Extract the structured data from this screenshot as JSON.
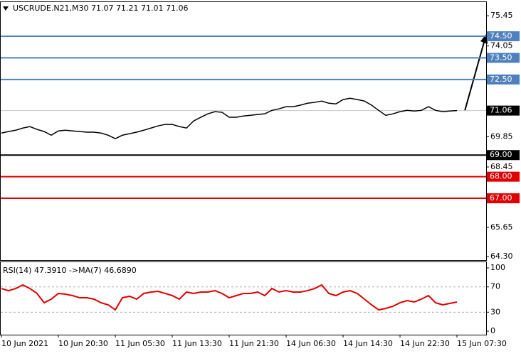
{
  "chart_data": [
    {
      "type": "line",
      "title": "USCRUDE.N21,M30  71.07 71.21 71.01 71.06",
      "categories": [
        "10 Jun 2021",
        null,
        null,
        null,
        null,
        null,
        null,
        null,
        "10 Jun 20:30",
        null,
        null,
        null,
        null,
        null,
        null,
        null,
        "11 Jun 05:30",
        null,
        null,
        null,
        null,
        null,
        null,
        null,
        "11 Jun 13:30",
        null,
        null,
        null,
        null,
        null,
        null,
        null,
        "11 Jun 21:30",
        null,
        null,
        null,
        null,
        null,
        null,
        null,
        "14 Jun 06:30",
        null,
        null,
        null,
        null,
        null,
        null,
        null,
        "14 Jun 14:30",
        null,
        null,
        null,
        null,
        null,
        null,
        null,
        "14 Jun 22:30",
        null,
        null,
        null,
        null,
        null,
        null,
        null,
        "15 Jun 07:30"
      ],
      "series": [
        {
          "color": "#000000",
          "values": [
            70.02,
            70.09,
            70.15,
            70.25,
            70.32,
            70.19,
            70.09,
            69.92,
            70.12,
            70.15,
            70.12,
            70.09,
            70.06,
            70.06,
            70.02,
            69.92,
            69.76,
            69.92,
            69.99,
            70.06,
            70.15,
            70.25,
            70.35,
            70.42,
            70.42,
            70.32,
            70.25,
            70.58,
            70.75,
            70.91,
            71.01,
            70.98,
            70.75,
            70.75,
            70.81,
            70.84,
            70.88,
            70.91,
            71.07,
            71.14,
            71.24,
            71.24,
            71.31,
            71.4,
            71.44,
            71.5,
            71.4,
            71.37,
            71.57,
            71.63,
            71.57,
            71.5,
            71.31,
            71.07,
            70.84,
            70.91,
            71.01,
            71.07,
            71.04,
            71.07,
            71.24,
            71.07,
            71.01,
            71.04,
            71.06
          ]
        }
      ],
      "ylim": [
        64.14,
        76.08
      ],
      "yticks": [
        75.45,
        74.05,
        69.85,
        68.45,
        65.65,
        {
          "value": 64.3,
          "label": "64.30"
        }
      ],
      "levels": [
        {
          "value": 74.5,
          "label": "74.50",
          "color": "#4f81bd"
        },
        {
          "value": 73.5,
          "label": "73.50",
          "color": "#4f81bd"
        },
        {
          "value": 72.5,
          "label": "72.50",
          "color": "#4f81bd"
        },
        {
          "value": 71.06,
          "label": "71.06",
          "color": "#000000",
          "line_color": "#c8c8c8"
        },
        {
          "value": 69,
          "label": "69.00",
          "color": "#000000"
        },
        {
          "value": 68,
          "label": "68.00",
          "color": "#e00000"
        },
        {
          "value": 67,
          "label": "67.00",
          "color": "#e00000"
        }
      ]
    },
    {
      "type": "line",
      "title": "RSI(14) 47.3910  ->MA(7) 46.6890",
      "series": [
        {
          "color": "#e00000",
          "values": [
            67.4,
            64.0,
            67.4,
            73.0,
            67.4,
            59.6,
            44.9,
            50.6,
            59.6,
            58.4,
            56.2,
            52.8,
            52.8,
            50.6,
            44.9,
            41.6,
            33.7,
            52.8,
            55.1,
            50.6,
            59.6,
            61.8,
            62.9,
            59.6,
            56.2,
            50.6,
            61.8,
            59.6,
            61.8,
            61.8,
            64.0,
            59.6,
            52.8,
            56.2,
            59.6,
            59.6,
            61.8,
            56.2,
            67.4,
            61.8,
            64.0,
            61.8,
            61.8,
            64.0,
            67.4,
            73.0,
            59.6,
            56.2,
            61.8,
            64.0,
            59.6,
            50.6,
            41.6,
            33.7,
            36.0,
            39.3,
            44.9,
            48.3,
            46.1,
            50.6,
            56.2,
            44.9,
            41.6,
            43.8,
            46.1
          ]
        }
      ],
      "ylim": [
        -5.6,
        109
      ],
      "yticks": [
        100,
        70,
        30,
        0
      ]
    }
  ]
}
